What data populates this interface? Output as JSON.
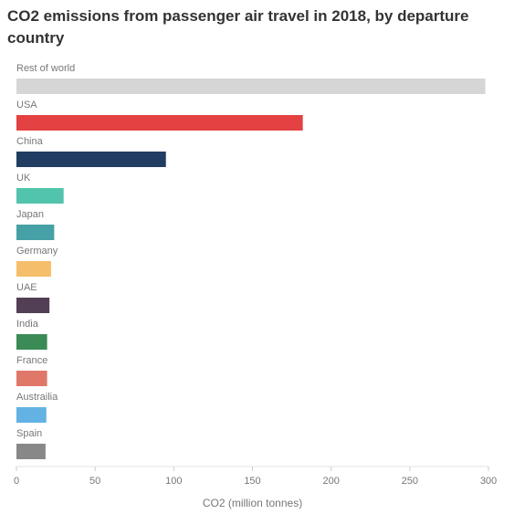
{
  "chart_data": {
    "type": "bar",
    "orientation": "horizontal",
    "title": "CO2 emissions from passenger air travel in 2018, by departure country",
    "xlabel": "CO2 (million tonnes)",
    "ylabel": "",
    "xlim": [
      0,
      300
    ],
    "xticks": [
      0,
      50,
      100,
      150,
      200,
      250,
      300
    ],
    "grid": false,
    "legend": "none",
    "categories": [
      "Rest of world",
      "USA",
      "China",
      "UK",
      "Japan",
      "Germany",
      "UAE",
      "India",
      "France",
      "Austrailia",
      "Spain"
    ],
    "values": [
      298,
      182,
      95,
      30,
      24,
      22,
      21,
      19.5,
      19.5,
      19,
      18.5
    ],
    "colors": [
      "#d6d6d6",
      "#e34142",
      "#213d61",
      "#52c3ac",
      "#45a1a5",
      "#f5be6a",
      "#533f55",
      "#3b8b57",
      "#e0786a",
      "#62b3e3",
      "#888888"
    ]
  }
}
